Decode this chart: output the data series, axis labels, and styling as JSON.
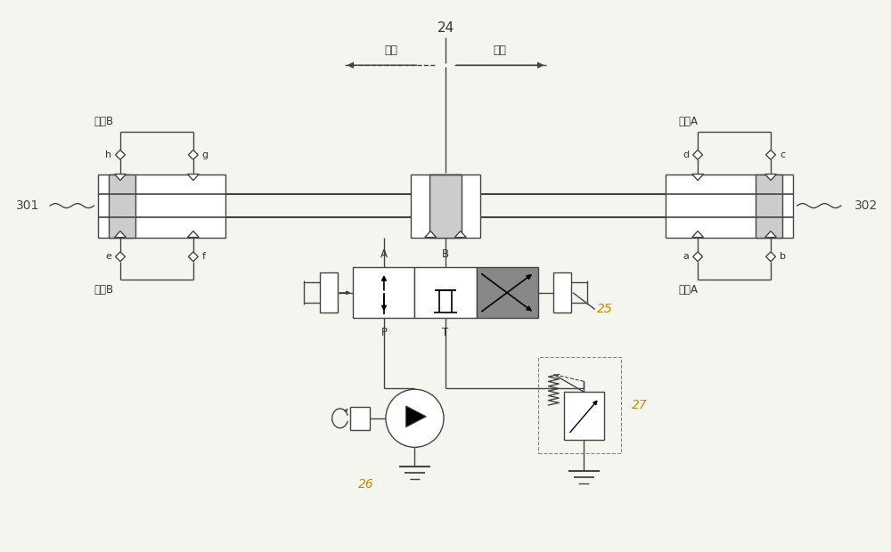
{
  "bg_color": "#f5f5f0",
  "line_color": "#444444",
  "text_color": "#333333",
  "label_color": "#cc8800",
  "figsize": [
    10.0,
    6.2
  ],
  "dpi": 100,
  "xlim": [
    0,
    10
  ],
  "ylim": [
    0,
    6.2
  ]
}
